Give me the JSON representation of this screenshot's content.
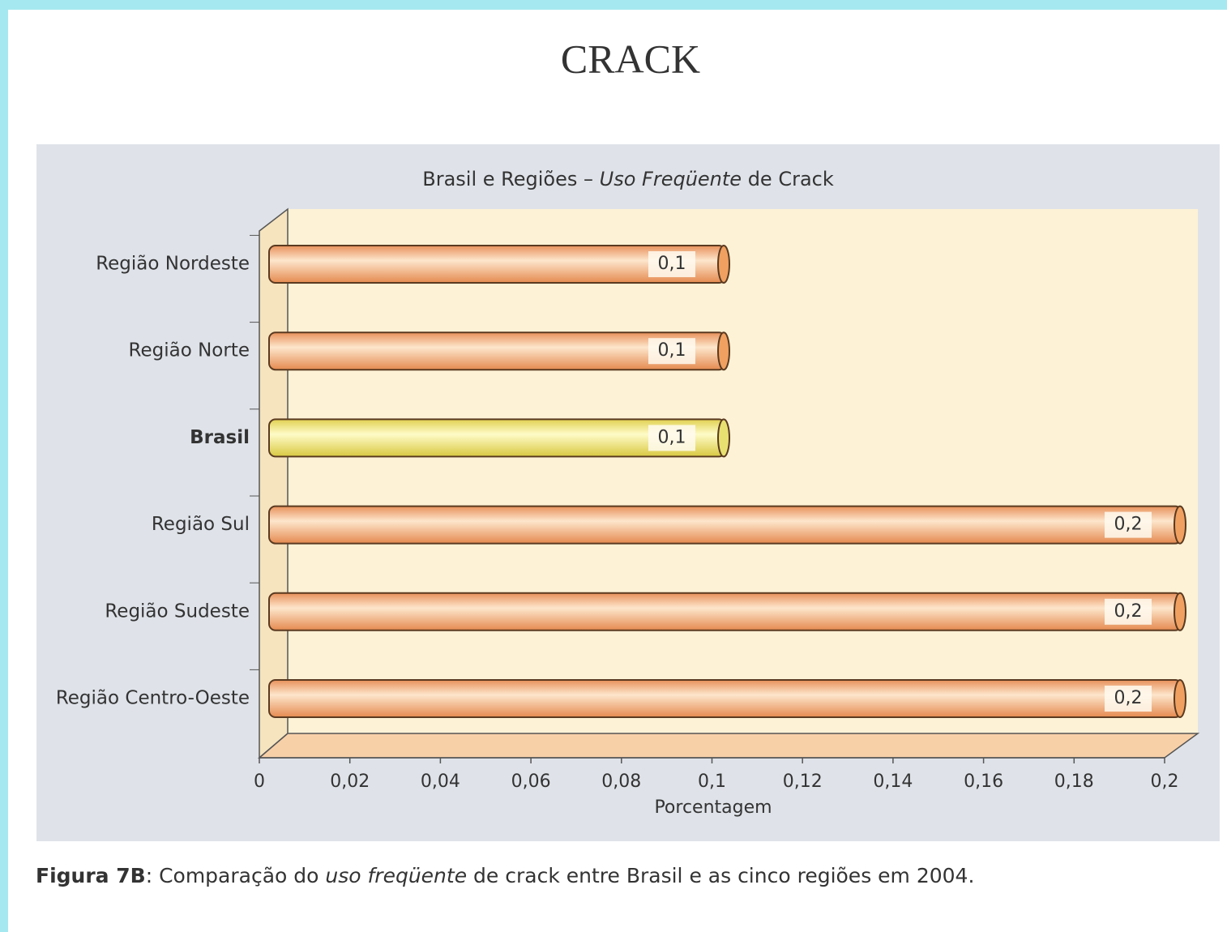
{
  "heading": "CRACK",
  "caption": [
    "Figura 7B",
    ": Comparação do ",
    "uso freqüente",
    " de crack entre Brasil e as cinco regiões em 2004."
  ],
  "chart_data": {
    "type": "bar",
    "orientation": "horizontal",
    "title": [
      "Brasil e Regiões – ",
      "Uso Freqüente",
      " de Crack"
    ],
    "categories": [
      "Região Nordeste",
      "Região Norte",
      "Brasil",
      "Região Sul",
      "Região Sudeste",
      "Região Centro-Oeste"
    ],
    "values": [
      0.1,
      0.1,
      0.1,
      0.2,
      0.2,
      0.2
    ],
    "value_labels": [
      "0,1",
      "0,1",
      "0,1",
      "0,2",
      "0,2",
      "0,2"
    ],
    "colors": [
      "#f0a060",
      "#f0a060",
      "#e8e070",
      "#f0a060",
      "#f0a060",
      "#f0a060"
    ],
    "highlight_index": 2,
    "xlabel": "Porcentagem",
    "xlim": [
      0,
      0.2
    ],
    "xticks": [
      0,
      {
        "value": 0.02,
        "label": "0,02"
      },
      {
        "value": 0.04,
        "label": "0,04"
      },
      {
        "value": 0.06,
        "label": "0,06"
      },
      {
        "value": 0.08,
        "label": "0,08"
      },
      {
        "value": 0.1,
        "label": "0,1"
      },
      {
        "value": 0.12,
        "label": "0,12"
      },
      {
        "value": 0.14,
        "label": "0,14"
      },
      {
        "value": 0.16,
        "label": "0,16"
      },
      {
        "value": 0.18,
        "label": "0,18"
      },
      {
        "value": 0.2,
        "label": "0,2"
      }
    ]
  }
}
